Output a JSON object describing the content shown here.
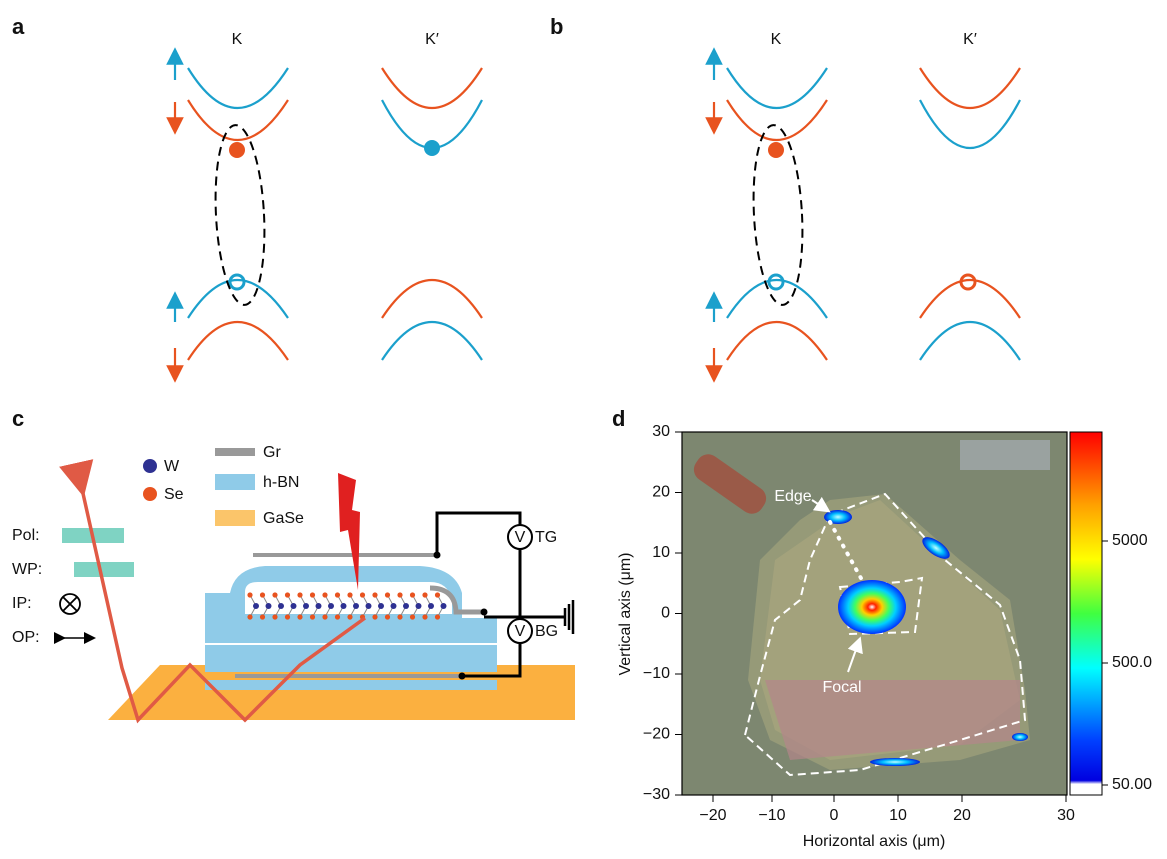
{
  "panels": {
    "a": {
      "label": "a",
      "valleys": [
        "K",
        "K′"
      ]
    },
    "b": {
      "label": "b",
      "valleys": [
        "K",
        "K′"
      ]
    },
    "c": {
      "label": "c",
      "atoms": [
        "W",
        "Se"
      ],
      "materials": [
        "Gr",
        "h-BN",
        "GaSe"
      ],
      "optics": [
        "Pol:",
        "WP:",
        "IP:",
        "OP:"
      ],
      "meter_symbol": "V",
      "meters": [
        "TG",
        "BG"
      ]
    },
    "d": {
      "label": "d",
      "x_label": "Horizontal axis (μm)",
      "y_label": "Vertical axis (μm)",
      "x_ticks": [
        "−20",
        "−10",
        "0",
        "10",
        "20",
        "30"
      ],
      "y_ticks": [
        "30",
        "20",
        "10",
        "0",
        "−10",
        "−20",
        "−30"
      ],
      "colorbar_ticks": [
        "5000",
        "500.0",
        "50.00"
      ],
      "annotations": [
        "Edge",
        "Focal"
      ]
    }
  }
}
